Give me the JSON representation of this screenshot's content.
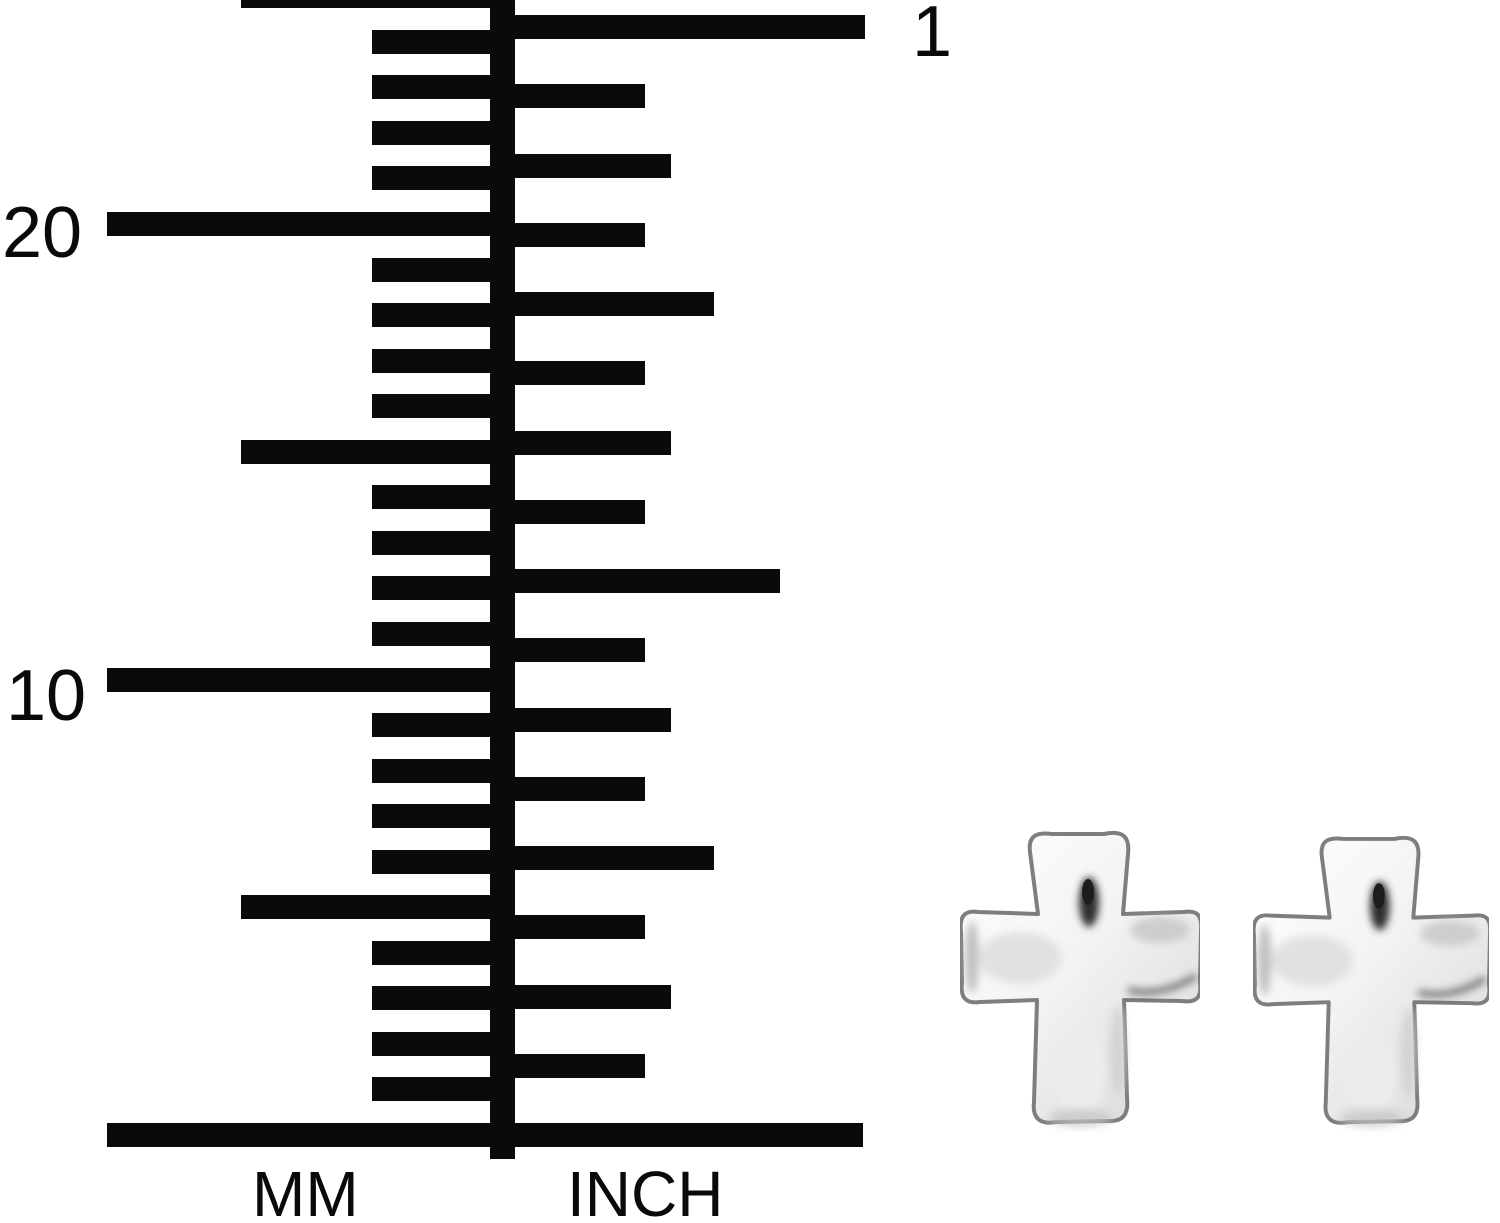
{
  "page": {
    "background_color": "#ffffff",
    "content": "jewelry size-guide ruler with cross stud earrings"
  },
  "ruler": {
    "ink_color": "#0a0a0a",
    "mm_scale": {
      "axis_label": "MM",
      "side": "left",
      "unit": "millimeter",
      "num_ticks": 25,
      "major_interval": 10,
      "medium_interval": 5,
      "labeled_ticks": [
        {
          "value": 20,
          "text": "20"
        },
        {
          "value": 10,
          "text": "10"
        }
      ]
    },
    "inch_scale": {
      "axis_label": "INCH",
      "side": "right",
      "unit": "inch",
      "num_ticks": 16,
      "ticks_per_inch": 16,
      "labeled_ticks": [
        {
          "value": 1,
          "text": "1"
        }
      ]
    }
  },
  "product": {
    "items": [
      {
        "icon": "cross-earring-icon",
        "position": "left"
      },
      {
        "icon": "cross-earring-icon",
        "position": "right"
      }
    ],
    "finish": {
      "palette": [
        "#ffffff",
        "#f3f3f3",
        "#e2e2e2",
        "#c9c9c9"
      ],
      "edge_color": "#7e7e7e",
      "reflection_dark": "#2f2f2f",
      "shade_mid": "#bdbdbd"
    }
  }
}
